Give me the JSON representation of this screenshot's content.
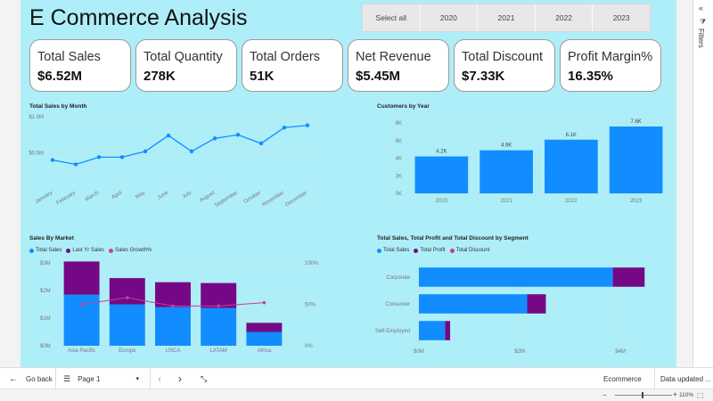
{
  "header": {
    "title": "E Commerce Analysis"
  },
  "slicer": {
    "options": [
      "Select all",
      "2020",
      "2021",
      "2022",
      "2023"
    ]
  },
  "kpis": [
    {
      "label": "Total Sales",
      "value": "$6.52M"
    },
    {
      "label": "Total Quantity",
      "value": "278K"
    },
    {
      "label": "Total Orders",
      "value": "51K"
    },
    {
      "label": "Net Revenue",
      "value": "$5.45M"
    },
    {
      "label": "Total Discount",
      "value": "$7.33K"
    },
    {
      "label": "Profit Margin%",
      "value": "16.35%"
    }
  ],
  "colors": {
    "blue": "#118dff",
    "purple": "#750985",
    "pink": "#c83d95",
    "grid": "#c5dfe6",
    "axis": "#777777"
  },
  "chart_data": [
    {
      "id": "sales_by_month",
      "type": "line",
      "title": "Total Sales by Month",
      "categories": [
        "January",
        "February",
        "March",
        "April",
        "May",
        "June",
        "July",
        "August",
        "September",
        "October",
        "November",
        "December"
      ],
      "values": [
        0.4,
        0.34,
        0.44,
        0.44,
        0.52,
        0.74,
        0.52,
        0.7,
        0.75,
        0.63,
        0.85,
        0.88
      ],
      "ylim": [
        0,
        1.0
      ],
      "yticks": [
        0.5,
        1.0
      ],
      "ytick_labels": [
        "$0.5M",
        "$1.0M"
      ]
    },
    {
      "id": "customers_by_year",
      "type": "bar",
      "title": "Customers by Year",
      "categories": [
        "2020",
        "2021",
        "2022",
        "2023"
      ],
      "values": [
        4.2,
        4.9,
        6.1,
        7.6
      ],
      "data_labels": [
        "4.2K",
        "4.9K",
        "6.1K",
        "7.6K"
      ],
      "ylim": [
        0,
        8
      ],
      "yticks": [
        0,
        2,
        4,
        6,
        8
      ],
      "ytick_labels": [
        "0K",
        "2K",
        "4K",
        "6K",
        "8K"
      ]
    },
    {
      "id": "sales_by_market",
      "type": "bar",
      "title": "Sales By Market",
      "categories": [
        "Asia Pacific",
        "Europe",
        "USCA",
        "LATAM",
        "Africa"
      ],
      "series": [
        {
          "name": "Total Sales",
          "values": [
            1.85,
            1.5,
            1.4,
            1.37,
            0.5
          ]
        },
        {
          "name": "Last Yr Sales",
          "values": [
            1.2,
            0.95,
            0.9,
            0.9,
            0.33
          ]
        },
        {
          "name": "Sales Growth%",
          "values": [
            50,
            58,
            48,
            48,
            52
          ]
        }
      ],
      "ylim": [
        0,
        3
      ],
      "yticks": [
        0,
        1,
        2,
        3
      ],
      "ytick_labels": [
        "$0M",
        "$1M",
        "$2M",
        "$3M"
      ],
      "y2lim": [
        0,
        100
      ],
      "y2ticks": [
        0,
        50,
        100
      ],
      "y2tick_labels": [
        "0%",
        "50%",
        "100%"
      ]
    },
    {
      "id": "segment",
      "type": "bar",
      "orientation": "horizontal",
      "title": "Total Sales, Total Profit and Total Discount by Segment",
      "categories": [
        "Corporate",
        "Consumer",
        "Self-Employed"
      ],
      "series": [
        {
          "name": "Total Sales",
          "values": [
            3.85,
            2.15,
            0.52
          ]
        },
        {
          "name": "Total Profit",
          "values": [
            0.63,
            0.37,
            0.1
          ]
        },
        {
          "name": "Total Discount",
          "values": [
            0.004,
            0.002,
            0.001
          ]
        }
      ],
      "xlim": [
        0,
        4.6
      ],
      "xticks": [
        0,
        2,
        4
      ],
      "xtick_labels": [
        "$0M",
        "$2M",
        "$4M"
      ]
    }
  ],
  "footer": {
    "go_back": "Go back",
    "page": "Page 1",
    "ecommerce": "Ecommerce",
    "data_updated": "Data updated ..."
  },
  "status": {
    "zoom": "110%"
  },
  "filters": {
    "label": "Filters"
  }
}
